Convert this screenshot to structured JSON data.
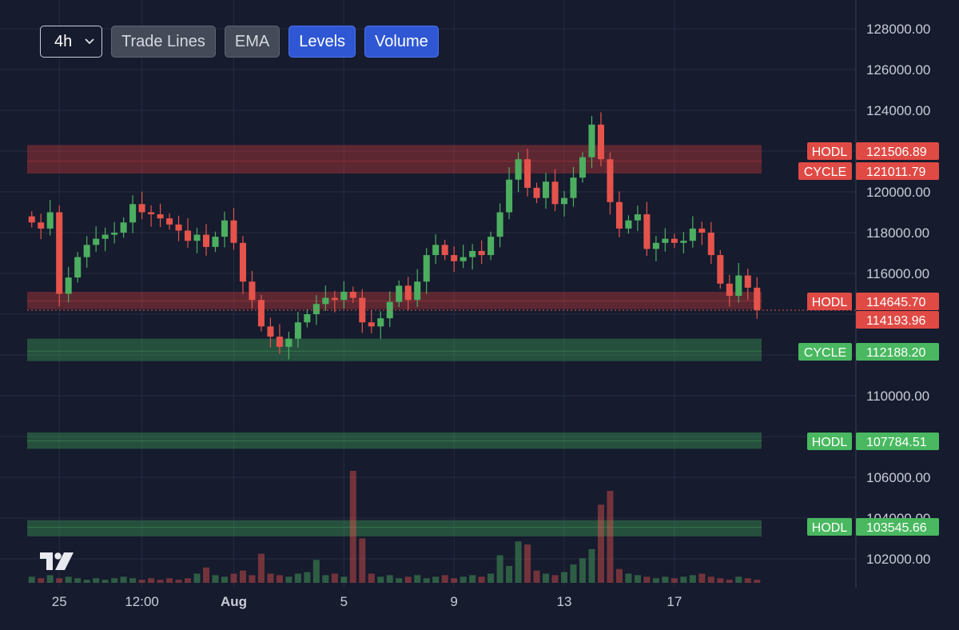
{
  "toolbar": {
    "timeframe": "4h",
    "buttons": [
      {
        "label": "Trade Lines",
        "active": false
      },
      {
        "label": "EMA",
        "active": false
      },
      {
        "label": "Levels",
        "active": true
      },
      {
        "label": "Volume",
        "active": true
      }
    ]
  },
  "colors": {
    "background": "#161b2e",
    "up": "#4caf60",
    "down": "#e5534b",
    "hodl_resistance": "#c0393a",
    "hodl_support": "#3f9a56"
  },
  "chart_data": {
    "type": "candlestick",
    "y_axis": {
      "ticks": [
        102000,
        104000,
        106000,
        110000,
        116000,
        118000,
        120000,
        124000,
        126000,
        128000
      ],
      "tick_labels": [
        "102000.00",
        "104000.00",
        "106000.00",
        "110000.00",
        "116000.00",
        "118000.00",
        "120000.00",
        "124000.00",
        "126000.00",
        "128000.00"
      ],
      "range": [
        100300,
        128800
      ]
    },
    "x_axis": {
      "tick_labels": [
        "25",
        "12:00",
        "Aug",
        "5",
        "9",
        "13",
        "17"
      ],
      "tick_bar_index": [
        3,
        12,
        22,
        34,
        46,
        58,
        70
      ]
    },
    "levels": [
      {
        "label": "HODL",
        "value": 121506.89,
        "value_label": "121506.89",
        "kind": "resistance",
        "band": [
          120900,
          122300
        ]
      },
      {
        "label": "CYCLE",
        "value": 121011.79,
        "value_label": "121011.79",
        "kind": "resistance",
        "band": null
      },
      {
        "label": "HODL",
        "value": 114645.7,
        "value_label": "114645.70",
        "kind": "resistance",
        "band": [
          114250,
          115100
        ]
      },
      {
        "label": "CYCLE",
        "value": 112188.2,
        "value_label": "112188.20",
        "kind": "support",
        "band": [
          111700,
          112800
        ]
      },
      {
        "label": "HODL",
        "value": 107784.51,
        "value_label": "107784.51",
        "kind": "support",
        "band": [
          107400,
          108200
        ]
      },
      {
        "label": "HODL",
        "value": 103545.66,
        "value_label": "103545.66",
        "kind": "support",
        "band": [
          103100,
          103900
        ]
      }
    ],
    "last_price": 114193.96,
    "last_price_label": "114193.96",
    "close": [
      118500,
      118200,
      119000,
      115000,
      115800,
      116800,
      117400,
      117700,
      117900,
      118000,
      118500,
      119400,
      119000,
      118900,
      118700,
      118400,
      118100,
      117600,
      117900,
      117300,
      117800,
      118600,
      117500,
      115600,
      114700,
      113400,
      112900,
      112400,
      112800,
      113600,
      114000,
      114500,
      114800,
      114700,
      115100,
      114800,
      113600,
      113400,
      113800,
      114600,
      115400,
      114700,
      115600,
      116900,
      117400,
      116900,
      116600,
      116800,
      117100,
      116900,
      117800,
      119000,
      120600,
      121600,
      120200,
      119700,
      120500,
      119400,
      119700,
      120700,
      121700,
      123300,
      121600,
      119500,
      118200,
      118600,
      118900,
      117200,
      117500,
      117700,
      117500,
      117600,
      118200,
      118000,
      116900,
      115500,
      114900,
      115900,
      115300,
      114200
    ],
    "volume": [
      0.4,
      0.3,
      0.5,
      0.3,
      0.4,
      0.3,
      0.2,
      0.3,
      0.2,
      0.3,
      0.4,
      0.3,
      0.2,
      0.3,
      0.2,
      0.3,
      0.2,
      0.3,
      0.6,
      1.0,
      0.5,
      0.4,
      0.6,
      0.8,
      0.5,
      1.9,
      0.6,
      0.5,
      0.4,
      0.6,
      0.7,
      1.5,
      0.5,
      0.6,
      0.4,
      7.3,
      2.9,
      0.6,
      0.4,
      0.5,
      0.3,
      0.4,
      0.5,
      0.3,
      0.4,
      0.5,
      0.3,
      0.4,
      0.5,
      0.4,
      0.6,
      1.8,
      1.1,
      2.7,
      2.5,
      0.8,
      0.6,
      0.5,
      0.7,
      1.2,
      1.6,
      2.2,
      5.1,
      6.0,
      0.9,
      0.6,
      0.5,
      0.4,
      0.3,
      0.4,
      0.3,
      0.4,
      0.5,
      0.6,
      0.4,
      0.3,
      0.2,
      0.4,
      0.3,
      0.2
    ]
  }
}
